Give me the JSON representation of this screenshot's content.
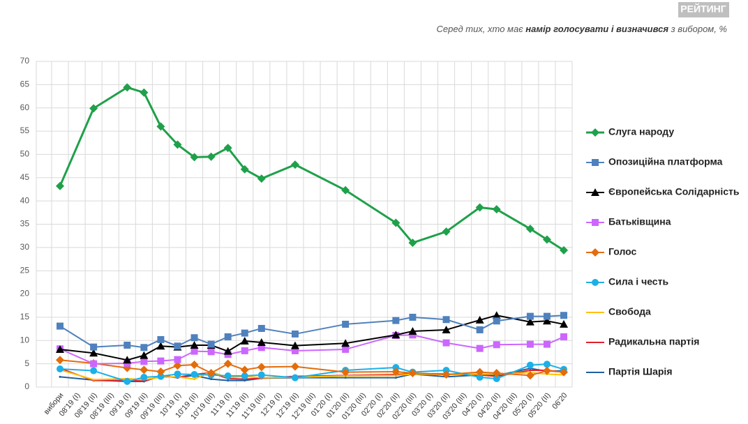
{
  "chart_data": {
    "type": "line",
    "brand": "РЕЙТИНГ",
    "subtitle": [
      "Серед тих, хто має ",
      "намір голосувати і визначився",
      " з вибором, %"
    ],
    "categories": [
      "вибори",
      "08'19 (I)",
      "08'19 (II)",
      "08'19 (III)",
      "09'19 (I)",
      "09'19 (II)",
      "09'19 (III)",
      "10'19 (I)",
      "10'19 (II)",
      "10'19 (III)",
      "11'19 (I)",
      "11'19 (II)",
      "11'19 (III)",
      "12'19 (I)",
      "12'19 (II)",
      "12'19 (III)",
      "01'20 (I)",
      "01'20 (II)",
      "01'20 (III)",
      "02'20 (I)",
      "02'20 (II)",
      "02'20 (III)",
      "03'20 (I)",
      "03'20 (II)",
      "03'20 (III)",
      "04'20 (I)",
      "04'20 (II)",
      "04'20 (III)",
      "05'20 (I)",
      "05'20 (II)",
      "06'20"
    ],
    "ylim": [
      0,
      70
    ],
    "yticks": [
      0,
      5,
      10,
      15,
      20,
      25,
      30,
      35,
      40,
      45,
      50,
      55,
      60,
      65,
      70
    ],
    "grid": true,
    "legend": "right",
    "series": [
      {
        "name": "Слуга народу",
        "color": "#1fa04a",
        "marker": "diamond",
        "values": [
          43.2,
          null,
          59.9,
          null,
          64.4,
          63.3,
          56,
          52.1,
          49.4,
          49.5,
          51.4,
          46.8,
          44.8,
          null,
          47.8,
          null,
          null,
          42.3,
          null,
          null,
          35.3,
          31,
          null,
          33.4,
          null,
          38.6,
          38.2,
          null,
          34,
          31.7,
          29.4
        ]
      },
      {
        "name": "Опозиційна платформа",
        "color": "#4f81bd",
        "marker": "square",
        "values": [
          13.1,
          null,
          8.6,
          null,
          9,
          8.5,
          10.2,
          8.8,
          10.6,
          9.2,
          10.8,
          11.6,
          12.6,
          null,
          11.4,
          null,
          null,
          13.5,
          null,
          null,
          14.3,
          15,
          null,
          14.5,
          null,
          12.3,
          14.2,
          null,
          15.2,
          15.2,
          15.4
        ]
      },
      {
        "name": "Європейська Солідарність",
        "color": "#000000",
        "marker": "triangle",
        "values": [
          8.1,
          null,
          7.3,
          null,
          5.8,
          6.8,
          8.8,
          8.6,
          9,
          9,
          7.7,
          9.9,
          9.6,
          null,
          8.9,
          null,
          null,
          9.4,
          null,
          null,
          11.2,
          12,
          null,
          12.3,
          null,
          14.4,
          15.4,
          null,
          14,
          14.2,
          13.5
        ]
      },
      {
        "name": "Батьківщина",
        "color": "#cc66ff",
        "marker": "square",
        "values": [
          8.2,
          null,
          5,
          null,
          5.1,
          5.5,
          5.6,
          5.9,
          7.7,
          7.6,
          7,
          7.8,
          8.5,
          null,
          7.8,
          null,
          null,
          8.1,
          null,
          null,
          11.1,
          11.2,
          null,
          9.5,
          null,
          8.3,
          9.1,
          null,
          9.2,
          9.2,
          10.8
        ]
      },
      {
        "name": "Голос",
        "color": "#e46c0a",
        "marker": "diamond",
        "values": [
          5.8,
          null,
          5.1,
          null,
          4.1,
          3.7,
          3.3,
          4.6,
          4.8,
          3,
          5,
          3.7,
          4.3,
          null,
          4.4,
          null,
          null,
          3.2,
          null,
          null,
          3.3,
          3,
          null,
          2.7,
          null,
          3.2,
          3,
          null,
          2.5,
          3.5,
          3.2
        ]
      },
      {
        "name": "Сила і честь",
        "color": "#1cb0e8",
        "marker": "circle",
        "values": [
          3.9,
          null,
          3.5,
          null,
          1.2,
          2.1,
          2.3,
          2.8,
          2.7,
          2.6,
          2.4,
          2.4,
          2.6,
          null,
          2,
          null,
          null,
          3.6,
          null,
          null,
          4.2,
          3.2,
          null,
          3.6,
          null,
          2.1,
          1.8,
          null,
          4.7,
          4.9,
          3.8
        ]
      },
      {
        "name": "Свобода",
        "color": "#ffc000",
        "marker": "none",
        "values": [
          3.7,
          null,
          1.6,
          null,
          1.8,
          1.6,
          2.1,
          2.2,
          1.7,
          3.3,
          2,
          2.3,
          2,
          null,
          2.1,
          null,
          null,
          2.4,
          null,
          null,
          2.5,
          2.8,
          null,
          2.7,
          null,
          2.8,
          2.8,
          null,
          3.1,
          2.8,
          2.6
        ]
      },
      {
        "name": "Радикальна партія",
        "color": "#e0202c",
        "marker": "none",
        "values": [
          4,
          null,
          1.4,
          null,
          1.4,
          1.3,
          2.3,
          2.1,
          2.7,
          3.1,
          1.8,
          1.7,
          1.9,
          null,
          2.3,
          null,
          null,
          2.5,
          null,
          null,
          2.7,
          2.9,
          null,
          2.8,
          null,
          2.6,
          2.3,
          null,
          3.6,
          3.6,
          3.2
        ]
      },
      {
        "name": "Партія Шарія",
        "color": "#1f5f9f",
        "marker": "none",
        "values": [
          2.2,
          null,
          1.5,
          null,
          1.2,
          1.2,
          2.4,
          2,
          2.5,
          1.7,
          1.4,
          1.4,
          1.9,
          null,
          2,
          null,
          null,
          2,
          null,
          null,
          2,
          2.8,
          null,
          2.2,
          null,
          2.6,
          2.5,
          null,
          4,
          3.4,
          3.5
        ]
      }
    ]
  }
}
